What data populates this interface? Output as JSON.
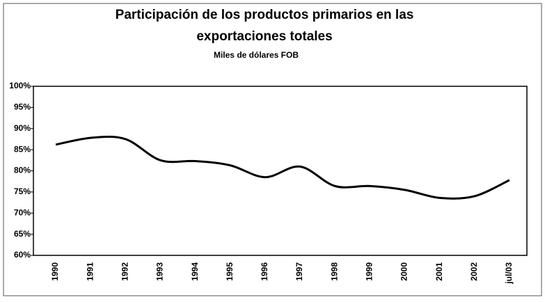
{
  "chart_data": {
    "type": "line",
    "title": "Participación de los productos primarios en las",
    "title_line2": "exportaciones totales",
    "subtitle": "Miles de dólares FOB",
    "categories": [
      "1990",
      "1991",
      "1992",
      "1993",
      "1994",
      "1995",
      "1996",
      "1997",
      "1998",
      "1999",
      "2000",
      "2001",
      "2002",
      "jul/03"
    ],
    "series": [
      {
        "name": "Participación",
        "color": "#000000",
        "values": [
          86.2,
          87.8,
          87.5,
          82.5,
          82.3,
          81.3,
          78.5,
          81,
          76.4,
          76.4,
          75.5,
          73.6,
          74,
          77.8
        ]
      }
    ],
    "ylim": [
      60,
      100
    ],
    "yticks": [
      {
        "value": 60,
        "label": "60%"
      },
      {
        "value": 65,
        "label": "65%"
      },
      {
        "value": 70,
        "label": "70%"
      },
      {
        "value": 75,
        "label": "75%"
      },
      {
        "value": 80,
        "label": "80%"
      },
      {
        "value": 85,
        "label": "85%"
      },
      {
        "value": 90,
        "label": "90%"
      },
      {
        "value": 95,
        "label": "95%"
      },
      {
        "value": 100,
        "label": "100%"
      }
    ],
    "grid": false
  }
}
